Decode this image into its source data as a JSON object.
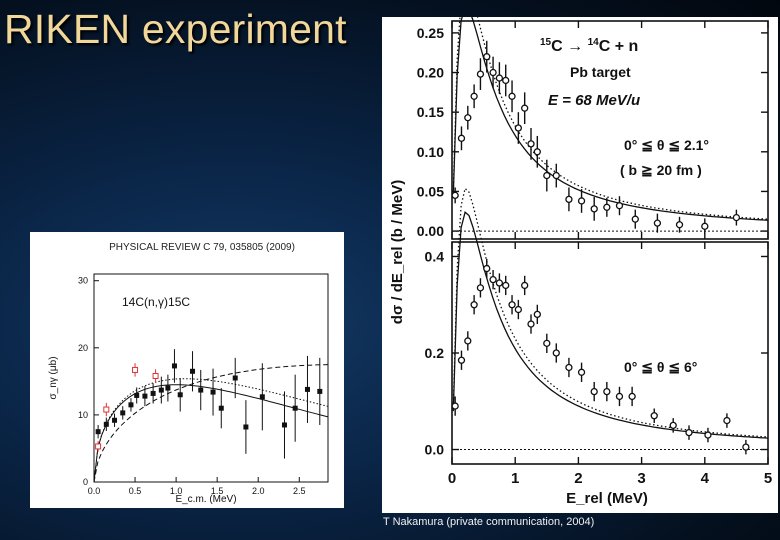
{
  "slide": {
    "title": "RIKEN experiment"
  },
  "credit": "T Nakamura (private communication, 2004)",
  "chart_data": [
    {
      "type": "scatter",
      "journal": "PHYSICAL REVIEW C 79, 035805 (2009)",
      "reaction": "14C(n,γ)15C",
      "xlabel": "E_c.m. (MeV)",
      "ylabel": "σ_nγ (μb)",
      "xlim": [
        0,
        2.85
      ],
      "ylim": [
        0,
        31
      ],
      "xticks": [
        "0.0",
        "0.5",
        "1.0",
        "1.5",
        "2.0",
        "2.5"
      ],
      "xtick_values": [
        0,
        0.5,
        1.0,
        1.5,
        2.0,
        2.5
      ],
      "yticks": [
        "0",
        "10",
        "20",
        "30"
      ],
      "ytick_values": [
        0,
        10,
        20,
        30
      ],
      "series": [
        {
          "marker": "filled-square",
          "points": [
            [
              0.05,
              7.5,
              1
            ],
            [
              0.15,
              8.6,
              1
            ],
            [
              0.25,
              9.2,
              1
            ],
            [
              0.35,
              10.3,
              1
            ],
            [
              0.45,
              11.5,
              1
            ],
            [
              0.52,
              12.9,
              1.2
            ],
            [
              0.62,
              12.8,
              1.5
            ],
            [
              0.72,
              13.2,
              1.5
            ],
            [
              0.82,
              13.7,
              2
            ],
            [
              0.9,
              14,
              2
            ],
            [
              0.98,
              17.3,
              2.5
            ],
            [
              1.05,
              13,
              2.5
            ],
            [
              1.2,
              16.5,
              3
            ],
            [
              1.3,
              13.7,
              3
            ],
            [
              1.45,
              13.4,
              3.5
            ],
            [
              1.55,
              11,
              3
            ],
            [
              1.72,
              15.5,
              3
            ],
            [
              1.85,
              8.2,
              4
            ],
            [
              2.05,
              12.7,
              5
            ],
            [
              2.32,
              8.5,
              5
            ],
            [
              2.45,
              11,
              5
            ],
            [
              2.6,
              13.8,
              5
            ],
            [
              2.75,
              13.5,
              5
            ]
          ]
        },
        {
          "marker": "open-square-red",
          "color": "#d33",
          "points": [
            [
              0.05,
              5.3,
              0.8
            ],
            [
              0.15,
              10.8,
              1
            ],
            [
              0.5,
              16.7,
              1
            ],
            [
              0.75,
              15.8,
              1
            ]
          ]
        }
      ],
      "curves": {
        "solid": "theory",
        "dashed": "theory",
        "dotted": "theory"
      }
    },
    {
      "type": "scatter",
      "reaction_label": {
        "pre1": "15",
        "el1": "C → ",
        "pre2": "14",
        "el2": "C + n"
      },
      "target": "Pb target",
      "energy": "E = 68 MeV/u",
      "xlabel": "E_rel (MeV)",
      "ylabel": "dσ / dE_rel (b / MeV)",
      "xlim": [
        0,
        5
      ],
      "xticks": [
        "0",
        "1",
        "2",
        "3",
        "4",
        "5"
      ],
      "xtick_values": [
        0,
        1,
        2,
        3,
        4,
        5
      ],
      "panels": [
        {
          "angle_label": "0° ≦ θ ≦ 2.1°",
          "extra_label": "( b ≧ 20 fm )",
          "ylim": [
            -0.01,
            0.265
          ],
          "yticks": [
            "0.00",
            "0.05",
            "0.10",
            "0.15",
            "0.20",
            "0.25"
          ],
          "ytick_values": [
            0,
            0.05,
            0.1,
            0.15,
            0.2,
            0.25
          ],
          "points": [
            [
              0.05,
              0.045,
              0.01
            ],
            [
              0.15,
              0.117,
              0.015
            ],
            [
              0.25,
              0.143,
              0.015
            ],
            [
              0.35,
              0.17,
              0.015
            ],
            [
              0.45,
              0.198,
              0.02
            ],
            [
              0.55,
              0.22,
              0.02
            ],
            [
              0.65,
              0.2,
              0.02
            ],
            [
              0.75,
              0.193,
              0.02
            ],
            [
              0.85,
              0.19,
              0.02
            ],
            [
              0.95,
              0.17,
              0.02
            ],
            [
              1.05,
              0.13,
              0.02
            ],
            [
              1.15,
              0.155,
              0.02
            ],
            [
              1.25,
              0.11,
              0.02
            ],
            [
              1.35,
              0.1,
              0.02
            ],
            [
              1.5,
              0.07,
              0.02
            ],
            [
              1.65,
              0.07,
              0.015
            ],
            [
              1.85,
              0.04,
              0.015
            ],
            [
              2.05,
              0.038,
              0.015
            ],
            [
              2.25,
              0.028,
              0.015
            ],
            [
              2.45,
              0.03,
              0.012
            ],
            [
              2.65,
              0.032,
              0.012
            ],
            [
              2.9,
              0.015,
              0.012
            ],
            [
              3.25,
              0.01,
              0.012
            ],
            [
              3.6,
              0.008,
              0.01
            ],
            [
              4.0,
              0.006,
              0.01
            ],
            [
              4.5,
              0.017,
              0.01
            ]
          ]
        },
        {
          "angle_label": "0° ≦ θ ≦ 6°",
          "ylim": [
            -0.03,
            0.43
          ],
          "yticks": [
            "0.0",
            "0.2",
            "0.4"
          ],
          "ytick_values": [
            0,
            0.2,
            0.4
          ],
          "points": [
            [
              0.05,
              0.09,
              0.02
            ],
            [
              0.15,
              0.185,
              0.02
            ],
            [
              0.25,
              0.225,
              0.02
            ],
            [
              0.35,
              0.3,
              0.02
            ],
            [
              0.45,
              0.335,
              0.02
            ],
            [
              0.55,
              0.375,
              0.02
            ],
            [
              0.65,
              0.352,
              0.02
            ],
            [
              0.75,
              0.345,
              0.02
            ],
            [
              0.85,
              0.34,
              0.02
            ],
            [
              0.95,
              0.3,
              0.02
            ],
            [
              1.05,
              0.29,
              0.02
            ],
            [
              1.15,
              0.34,
              0.02
            ],
            [
              1.25,
              0.26,
              0.02
            ],
            [
              1.35,
              0.28,
              0.02
            ],
            [
              1.5,
              0.22,
              0.02
            ],
            [
              1.65,
              0.2,
              0.02
            ],
            [
              1.85,
              0.17,
              0.02
            ],
            [
              2.05,
              0.16,
              0.02
            ],
            [
              2.25,
              0.12,
              0.02
            ],
            [
              2.45,
              0.12,
              0.02
            ],
            [
              2.65,
              0.11,
              0.02
            ],
            [
              2.85,
              0.11,
              0.02
            ],
            [
              3.2,
              0.07,
              0.015
            ],
            [
              3.5,
              0.05,
              0.015
            ],
            [
              3.75,
              0.035,
              0.015
            ],
            [
              4.05,
              0.03,
              0.015
            ],
            [
              4.35,
              0.06,
              0.015
            ],
            [
              4.65,
              0.005,
              0.015
            ]
          ]
        }
      ]
    }
  ]
}
